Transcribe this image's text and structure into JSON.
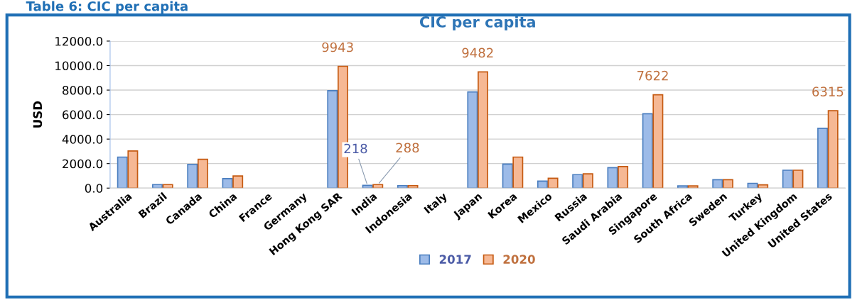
{
  "chart_data": {
    "type": "bar",
    "title": "CIC per capita",
    "ylabel": "USD",
    "annotations": [
      "Table 6: CIC per capita"
    ],
    "categories": [
      "Australia",
      "Brazil",
      "Canada",
      "China",
      "France",
      "Germany",
      "Hong Kong SAR",
      "India",
      "Indonesia",
      "Italy",
      "Japan",
      "Korea",
      "Mexico",
      "Russia",
      "Saudi Arabia",
      "Singapore",
      "South Africa",
      "Sweden",
      "Turkey",
      "United Kingdom",
      "United States"
    ],
    "series": [
      {
        "name": "2017",
        "color": "#9dbbe8",
        "values": [
          2530,
          290,
          1940,
          770,
          null,
          null,
          7950,
          218,
          200,
          null,
          7850,
          1960,
          570,
          1100,
          1670,
          6070,
          180,
          690,
          390,
          1460,
          4880
        ],
        "value_labels": [
          null,
          null,
          null,
          null,
          null,
          null,
          null,
          "218",
          null,
          null,
          null,
          null,
          null,
          null,
          null,
          null,
          null,
          null,
          null,
          null,
          null
        ]
      },
      {
        "name": "2020",
        "color": "#f6b894",
        "values": [
          3030,
          290,
          2350,
          990,
          null,
          null,
          9943,
          288,
          200,
          null,
          9482,
          2530,
          800,
          1160,
          1760,
          7622,
          180,
          690,
          270,
          1460,
          6315
        ],
        "value_labels": [
          null,
          null,
          null,
          null,
          null,
          null,
          "9943",
          "288",
          null,
          null,
          "9482",
          null,
          null,
          null,
          null,
          "7622",
          null,
          null,
          null,
          null,
          "6315"
        ]
      }
    ],
    "ylim": [
      0,
      12000
    ],
    "yticks": [
      {
        "value": 0,
        "label": "0.0"
      },
      {
        "value": 2000,
        "label": "2000.0"
      },
      {
        "value": 4000,
        "label": "4000.0"
      },
      {
        "value": 6000,
        "label": "6000.0"
      },
      {
        "value": 8000,
        "label": "8000.0"
      },
      {
        "value": 10000,
        "label": "10000.0"
      },
      {
        "value": 12000,
        "label": "12000.0"
      }
    ],
    "grid": "y",
    "legend": "bottom"
  }
}
